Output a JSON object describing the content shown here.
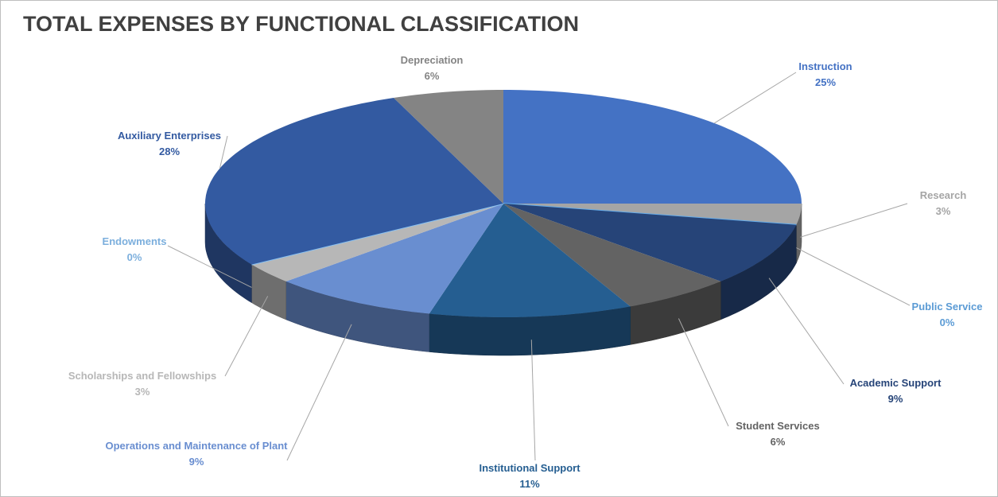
{
  "chart_data": {
    "type": "pie",
    "title": "TOTAL EXPENSES BY FUNCTIONAL CLASSIFICATION",
    "categories": [
      "Instruction",
      "Research",
      "Public Service",
      "Academic Support",
      "Student Services",
      "Institutional Support",
      "Operations and Maintenance of Plant",
      "Scholarships and Fellowships",
      "Endowments",
      "Auxiliary Enterprises",
      "Depreciation"
    ],
    "values": [
      25,
      3,
      0,
      9,
      6,
      11,
      9,
      3,
      0,
      28,
      6
    ],
    "value_labels": [
      "25%",
      "3%",
      "0%",
      "9%",
      "6%",
      "11%",
      "9%",
      "3%",
      "0%",
      "28%",
      "6%"
    ],
    "colors": [
      "#4472c4",
      "#a5a5a5",
      "#5b9bd5",
      "#264478",
      "#636363",
      "#255e91",
      "#698ed0",
      "#b7b7b7",
      "#7cafdd",
      "#335aa1",
      "#848484"
    ]
  }
}
